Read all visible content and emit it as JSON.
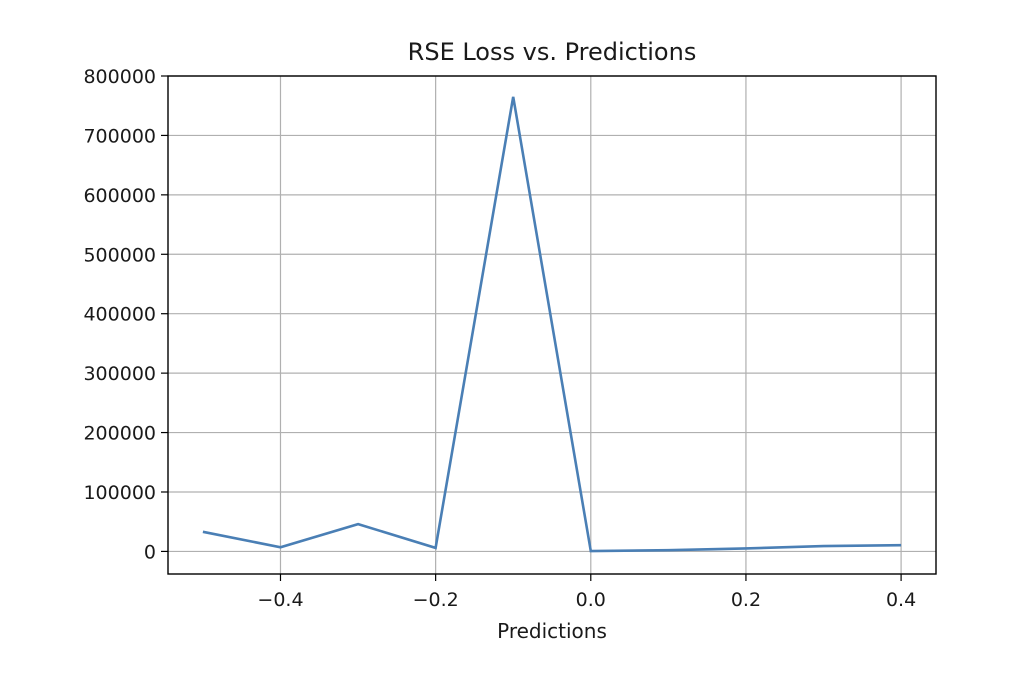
{
  "chart_data": {
    "type": "line",
    "title": "RSE Loss vs. Predictions",
    "xlabel": "Predictions",
    "ylabel": "",
    "xlim": [
      -0.545,
      0.445
    ],
    "ylim": [
      -38000,
      800000
    ],
    "xticks": [
      -0.4,
      -0.2,
      0.0,
      0.2,
      0.4
    ],
    "xtick_labels": [
      "−0.4",
      "−0.2",
      "0.0",
      "0.2",
      "0.4"
    ],
    "yticks": [
      0,
      100000,
      200000,
      300000,
      400000,
      500000,
      600000,
      700000,
      800000
    ],
    "ytick_labels": [
      "0",
      "100000",
      "200000",
      "300000",
      "400000",
      "500000",
      "600000",
      "700000",
      "800000"
    ],
    "grid": true,
    "legend": "none",
    "series": [
      {
        "color": "#4a7fb5",
        "x": [
          -0.5,
          -0.4,
          -0.3,
          -0.2,
          -0.1,
          0.0,
          0.1,
          0.2,
          0.3,
          0.4
        ],
        "y": [
          33000,
          7000,
          46000,
          6000,
          765000,
          500,
          2000,
          5000,
          9000,
          10500
        ]
      }
    ]
  }
}
